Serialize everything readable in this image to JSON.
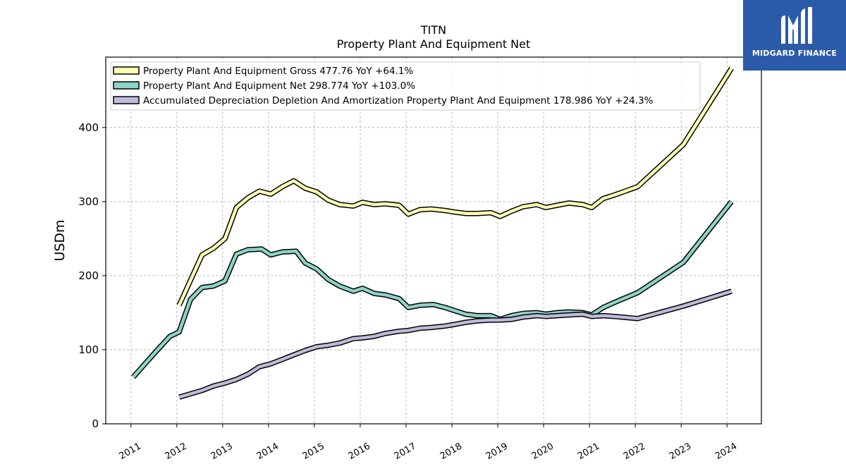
{
  "chart_data": {
    "type": "line",
    "title": "TITN",
    "subtitle": "Property Plant And Equipment Net",
    "ylabel": "USDm",
    "xlabel": "",
    "ylim": [
      0,
      495
    ],
    "xlim": [
      2010.45,
      2024.75
    ],
    "yticks": [
      0,
      100,
      200,
      300,
      400
    ],
    "xticks": [
      "2011",
      "2012",
      "2013",
      "2014",
      "2015",
      "2016",
      "2017",
      "2018",
      "2019",
      "2020",
      "2021",
      "2022",
      "2023",
      "2024"
    ],
    "grid": true,
    "legend_position": "top-left",
    "series": [
      {
        "name": "Property Plant And Equipment Gross  477.76 YoY +64.1%",
        "color": "#ffffb3",
        "points": [
          [
            2012.05,
            160
          ],
          [
            2012.55,
            228
          ],
          [
            2012.8,
            237
          ],
          [
            2013.05,
            250
          ],
          [
            2013.3,
            292
          ],
          [
            2013.55,
            305
          ],
          [
            2013.8,
            314
          ],
          [
            2014.05,
            310
          ],
          [
            2014.3,
            320
          ],
          [
            2014.55,
            328
          ],
          [
            2014.8,
            318
          ],
          [
            2015.05,
            313
          ],
          [
            2015.3,
            302
          ],
          [
            2015.55,
            296
          ],
          [
            2015.85,
            294
          ],
          [
            2016.05,
            299
          ],
          [
            2016.3,
            296
          ],
          [
            2016.55,
            297
          ],
          [
            2016.85,
            295
          ],
          [
            2017.05,
            283
          ],
          [
            2017.3,
            289
          ],
          [
            2017.55,
            290
          ],
          [
            2017.85,
            288
          ],
          [
            2018.05,
            286
          ],
          [
            2018.3,
            284
          ],
          [
            2018.55,
            284
          ],
          [
            2018.85,
            285
          ],
          [
            2019.05,
            280
          ],
          [
            2019.3,
            287
          ],
          [
            2019.55,
            293
          ],
          [
            2019.85,
            296
          ],
          [
            2020.05,
            292
          ],
          [
            2020.3,
            295
          ],
          [
            2020.55,
            298
          ],
          [
            2020.85,
            296
          ],
          [
            2021.05,
            292
          ],
          [
            2021.3,
            304
          ],
          [
            2021.55,
            309
          ],
          [
            2022.05,
            320
          ],
          [
            2023.05,
            377
          ],
          [
            2024.1,
            480
          ]
        ]
      },
      {
        "name": "Property Plant And Equipment Net  298.774 YoY +103.0%",
        "color": "#8dd3c7",
        "points": [
          [
            2011.05,
            63
          ],
          [
            2011.55,
            98
          ],
          [
            2011.85,
            118
          ],
          [
            2012.05,
            124
          ],
          [
            2012.3,
            168
          ],
          [
            2012.55,
            184
          ],
          [
            2012.8,
            186
          ],
          [
            2013.05,
            193
          ],
          [
            2013.3,
            229
          ],
          [
            2013.55,
            235
          ],
          [
            2013.85,
            236
          ],
          [
            2014.05,
            228
          ],
          [
            2014.3,
            232
          ],
          [
            2014.6,
            233
          ],
          [
            2014.8,
            217
          ],
          [
            2015.05,
            209
          ],
          [
            2015.3,
            195
          ],
          [
            2015.55,
            186
          ],
          [
            2015.85,
            179
          ],
          [
            2016.05,
            183
          ],
          [
            2016.3,
            176
          ],
          [
            2016.55,
            174
          ],
          [
            2016.85,
            169
          ],
          [
            2017.05,
            157
          ],
          [
            2017.3,
            160
          ],
          [
            2017.6,
            161
          ],
          [
            2017.85,
            157
          ],
          [
            2018.05,
            153
          ],
          [
            2018.3,
            148
          ],
          [
            2018.55,
            146
          ],
          [
            2018.85,
            146
          ],
          [
            2019.05,
            141
          ],
          [
            2019.3,
            146
          ],
          [
            2019.55,
            149
          ],
          [
            2019.85,
            150
          ],
          [
            2020.05,
            148
          ],
          [
            2020.3,
            150
          ],
          [
            2020.55,
            151
          ],
          [
            2020.85,
            150
          ],
          [
            2021.05,
            147
          ],
          [
            2021.3,
            157
          ],
          [
            2021.55,
            164
          ],
          [
            2022.05,
            177
          ],
          [
            2023.05,
            218
          ],
          [
            2024.1,
            300
          ]
        ]
      },
      {
        "name": "Accumulated Depreciation Depletion And Amortization Property Plant And Equipment  178.986 YoY +24.3%",
        "color": "#bebada",
        "points": [
          [
            2012.05,
            36
          ],
          [
            2012.55,
            45
          ],
          [
            2012.8,
            51
          ],
          [
            2013.05,
            55
          ],
          [
            2013.3,
            60
          ],
          [
            2013.55,
            67
          ],
          [
            2013.8,
            77
          ],
          [
            2014.05,
            81
          ],
          [
            2014.3,
            87
          ],
          [
            2014.55,
            93
          ],
          [
            2014.8,
            99
          ],
          [
            2015.05,
            104
          ],
          [
            2015.3,
            106
          ],
          [
            2015.55,
            109
          ],
          [
            2015.85,
            115
          ],
          [
            2016.05,
            116
          ],
          [
            2016.3,
            118
          ],
          [
            2016.55,
            122
          ],
          [
            2016.85,
            125
          ],
          [
            2017.05,
            126
          ],
          [
            2017.3,
            129
          ],
          [
            2017.55,
            130
          ],
          [
            2017.85,
            132
          ],
          [
            2018.05,
            134
          ],
          [
            2018.3,
            137
          ],
          [
            2018.55,
            139
          ],
          [
            2018.85,
            140
          ],
          [
            2019.05,
            140
          ],
          [
            2019.3,
            141
          ],
          [
            2019.55,
            144
          ],
          [
            2019.85,
            146
          ],
          [
            2020.05,
            145
          ],
          [
            2020.3,
            146
          ],
          [
            2020.55,
            147
          ],
          [
            2020.85,
            148
          ],
          [
            2021.05,
            145
          ],
          [
            2021.3,
            146
          ],
          [
            2021.55,
            145
          ],
          [
            2022.05,
            142
          ],
          [
            2023.05,
            159
          ],
          [
            2024.1,
            179
          ]
        ]
      }
    ]
  },
  "logo": {
    "text": "MIDGARD FINANCE",
    "background": "#2b5aa8",
    "color": "#ffffff"
  }
}
